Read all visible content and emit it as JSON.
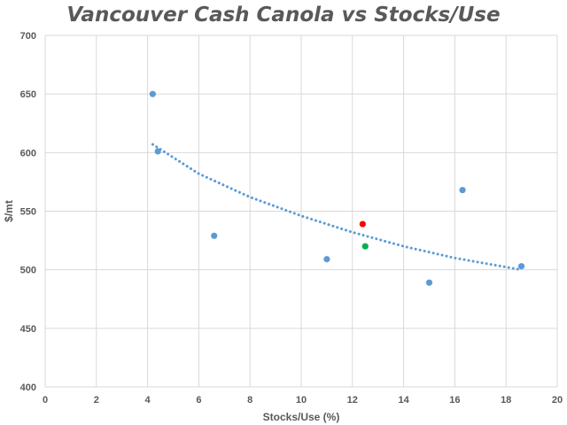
{
  "chart_data": {
    "type": "scatter",
    "title": "Vancouver Cash Canola vs Stocks/Use",
    "xlabel": "Stocks/Use (%)",
    "ylabel": "$/mt",
    "xlim": [
      0,
      20
    ],
    "ylim": [
      400,
      700
    ],
    "x_ticks": [
      0,
      2,
      4,
      6,
      8,
      10,
      12,
      14,
      16,
      18,
      20
    ],
    "y_ticks": [
      400,
      450,
      500,
      550,
      600,
      650,
      700
    ],
    "grid": true,
    "legend": "none",
    "series": [
      {
        "color": "#5b9bd5",
        "points": [
          {
            "x": 4.2,
            "y": 650
          },
          {
            "x": 4.4,
            "y": 601
          },
          {
            "x": 6.6,
            "y": 529
          },
          {
            "x": 11.0,
            "y": 509
          },
          {
            "x": 15.0,
            "y": 489
          },
          {
            "x": 16.3,
            "y": 568
          },
          {
            "x": 18.6,
            "y": 503
          }
        ]
      },
      {
        "color": "#ff0000",
        "points": [
          {
            "x": 12.4,
            "y": 539
          }
        ]
      },
      {
        "color": "#00b050",
        "points": [
          {
            "x": 12.5,
            "y": 520
          }
        ]
      }
    ],
    "trendline": {
      "type": "power",
      "style": "dotted",
      "color": "#5b9bd5",
      "x_range": [
        4.2,
        18.6
      ],
      "points": [
        {
          "x": 4.2,
          "y": 607
        },
        {
          "x": 6,
          "y": 582
        },
        {
          "x": 8,
          "y": 562
        },
        {
          "x": 10,
          "y": 546
        },
        {
          "x": 12,
          "y": 532
        },
        {
          "x": 14,
          "y": 520
        },
        {
          "x": 16,
          "y": 510
        },
        {
          "x": 18.6,
          "y": 500
        }
      ]
    }
  }
}
